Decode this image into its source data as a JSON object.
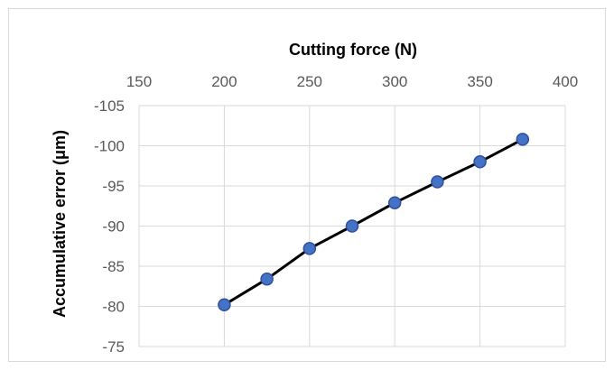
{
  "chart_data": {
    "type": "line",
    "xlabel": "Cutting force (N)",
    "ylabel": "Accumulative error (μm)",
    "x_axis_position": "top",
    "y_axis_reversed": true,
    "xlim": [
      150,
      400
    ],
    "ylim": [
      -75,
      -105
    ],
    "x_ticks": [
      150,
      200,
      250,
      300,
      350,
      400
    ],
    "y_ticks": [
      -105,
      -100,
      -95,
      -90,
      -85,
      -80,
      -75
    ],
    "x_tick_labels": [
      "150",
      "200",
      "250",
      "300",
      "350",
      "400"
    ],
    "y_tick_labels": [
      "-105",
      "-100",
      "-95",
      "-90",
      "-85",
      "-80",
      "-75"
    ],
    "grid": true,
    "series": [
      {
        "x": [
          200,
          225,
          250,
          275,
          300,
          325,
          350,
          375
        ],
        "y": [
          -80.2,
          -83.4,
          -87.2,
          -90.0,
          -92.9,
          -95.5,
          -98.0,
          -100.8
        ],
        "line_color": "#000000",
        "marker_fill": "#4472c4",
        "marker_edge": "#2f4f9f"
      }
    ]
  }
}
